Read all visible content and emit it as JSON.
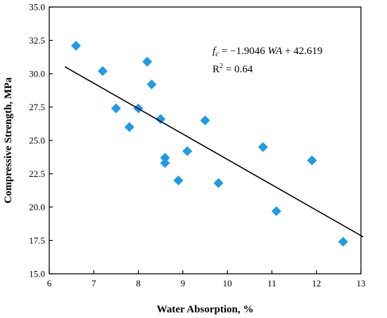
{
  "chart_data": {
    "type": "scatter",
    "xlabel": "Water Absorption, %",
    "ylabel": "Compressive Strength, MPa",
    "xlim": [
      6,
      13
    ],
    "ylim": [
      15.0,
      35.0
    ],
    "x_ticks": [
      6,
      7,
      8,
      9,
      10,
      11,
      12,
      13
    ],
    "x_tick_labels": [
      "6",
      "7",
      "8",
      "9",
      "10",
      "11",
      "12",
      "13"
    ],
    "y_ticks": [
      15.0,
      17.5,
      20.0,
      22.5,
      25.0,
      27.5,
      30.0,
      32.5,
      35.0
    ],
    "y_tick_labels": [
      "15.0",
      "17.5",
      "20.0",
      "22.5",
      "25.0",
      "27.5",
      "30.0",
      "32.5",
      "35.0"
    ],
    "marker": "diamond",
    "marker_color": "#1e9be8",
    "points": [
      {
        "x": 6.6,
        "y": 32.1
      },
      {
        "x": 7.2,
        "y": 30.2
      },
      {
        "x": 7.5,
        "y": 27.4
      },
      {
        "x": 7.8,
        "y": 26.0
      },
      {
        "x": 8.0,
        "y": 27.4
      },
      {
        "x": 8.2,
        "y": 30.9
      },
      {
        "x": 8.3,
        "y": 29.2
      },
      {
        "x": 8.5,
        "y": 26.6
      },
      {
        "x": 8.6,
        "y": 23.7
      },
      {
        "x": 8.6,
        "y": 23.3
      },
      {
        "x": 8.9,
        "y": 22.0
      },
      {
        "x": 9.1,
        "y": 24.2
      },
      {
        "x": 9.5,
        "y": 26.5
      },
      {
        "x": 9.8,
        "y": 21.8
      },
      {
        "x": 10.8,
        "y": 24.5
      },
      {
        "x": 11.1,
        "y": 19.7
      },
      {
        "x": 11.9,
        "y": 23.5
      },
      {
        "x": 12.6,
        "y": 17.4
      }
    ],
    "trendline": {
      "slope": -1.9046,
      "intercept": 42.619,
      "x_start": 6.35,
      "x_end": 13.05,
      "color": "#000000"
    },
    "equation": {
      "lhs_main": "f",
      "lhs_sub": "c",
      "rhs_pre": " = −1.9046 ",
      "rhs_var": "WA",
      "rhs_post": " + 42.619",
      "r2_label": "R",
      "r2_sup": "2",
      "r2_value": " = 0.64"
    }
  }
}
